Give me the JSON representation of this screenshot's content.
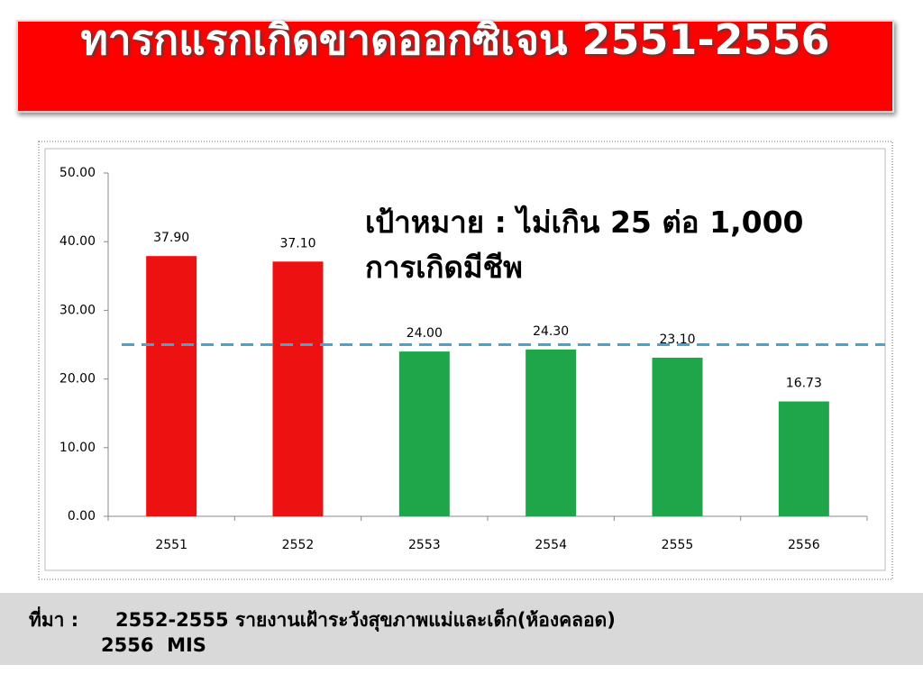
{
  "chart_data": {
    "type": "bar",
    "title": "ทารกแรกเกิดขาดออกซิเจน  2551-2556",
    "categories": [
      "2551",
      "2552",
      "2553",
      "2554",
      "2555",
      "2556"
    ],
    "values": [
      37.9,
      37.1,
      24.0,
      24.3,
      23.1,
      16.73
    ],
    "value_labels": [
      "37.90",
      "37.10",
      "24.00",
      "24.30",
      "23.10",
      "16.73"
    ],
    "colors": [
      "#ee1111",
      "#ee1111",
      "#1fa64a",
      "#1fa64a",
      "#1fa64a",
      "#1fa64a"
    ],
    "ylim": [
      0,
      50
    ],
    "yticks": [
      {
        "value": 0,
        "label": "0.00"
      },
      {
        "value": 10,
        "label": "10.00"
      },
      {
        "value": 20,
        "label": "20.00"
      },
      {
        "value": 30,
        "label": "30.00"
      },
      {
        "value": 40,
        "label": "40.00"
      },
      {
        "value": 50,
        "label": "50.00"
      }
    ],
    "target": {
      "value": 25,
      "color": "#4aa3c8",
      "label": "เป้าหมาย : ไม่เกิน 25 ต่อ 1,000 การเกิดมีชีพ"
    },
    "source": {
      "label": "ที่มา :",
      "lines": [
        "2552-2555 รายงานเฝ้าระวังสุขภาพแม่และเด็ก(ห้องคลอด)",
        "2556  MIS"
      ]
    }
  }
}
